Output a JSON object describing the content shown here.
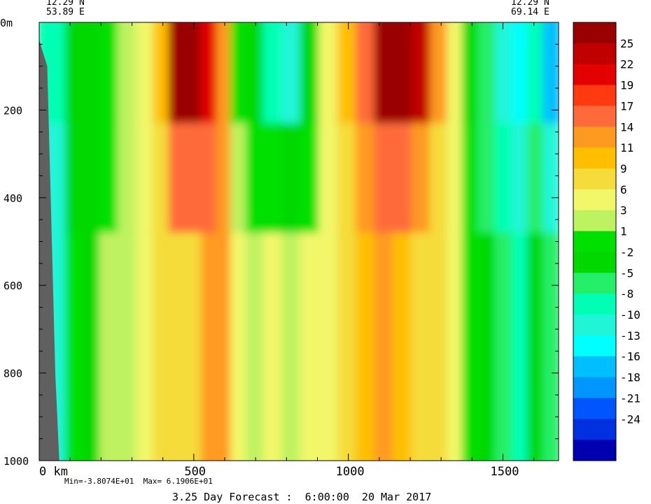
{
  "header": {
    "left_lat": "12.29 N",
    "left_lon": "53.89 E",
    "right_lat": "12.29 N",
    "right_lon": "69.14 E"
  },
  "footer": {
    "minmax": "Min=-3.8074E+01  Max= 6.1906E+01",
    "forecast": "3.25 Day Forecast :  6:00:00  20 Mar 2017"
  },
  "chart_data": {
    "type": "heatmap",
    "title": "",
    "xlabel": "",
    "ylabel": "",
    "x_tick_labels": [
      "0 km",
      "500",
      "1000",
      "1500"
    ],
    "x_ticks": [
      0,
      500,
      1000,
      1500
    ],
    "xlim": [
      0,
      1680
    ],
    "y_tick_labels": [
      "0m",
      "200",
      "400",
      "600",
      "800",
      "1000"
    ],
    "y_ticks": [
      0,
      200,
      400,
      600,
      800,
      1000
    ],
    "ylim": [
      0,
      1000
    ],
    "y_inverted": true,
    "colorbar": {
      "labels": [
        "25",
        "22",
        "19",
        "17",
        "14",
        "11",
        "9",
        "6",
        "3",
        "1",
        "-2",
        "-5",
        "-8",
        "-10",
        "-13",
        "-16",
        "-18",
        "-21",
        "-24"
      ],
      "colors": [
        "#9b0000",
        "#c00000",
        "#e30000",
        "#ff3a10",
        "#ff6a3a",
        "#ff9a20",
        "#ffbf00",
        "#f5dc3a",
        "#f2f76a",
        "#bff260",
        "#00e000",
        "#00d800",
        "#25ee68",
        "#00ffb4",
        "#20f5d8",
        "#00ffff",
        "#00bfff",
        "#0095ff",
        "#0055ff",
        "#0030e0",
        "#0000b0"
      ]
    },
    "columns": [
      {
        "x": 70,
        "value": -10,
        "deep": -13
      },
      {
        "x": 110,
        "value": -4,
        "deep": -2
      },
      {
        "x": 170,
        "value": -5,
        "deep": -3
      },
      {
        "x": 230,
        "value": -2,
        "deep": 1
      },
      {
        "x": 290,
        "value": 1,
        "deep": 2
      },
      {
        "x": 350,
        "value": 3,
        "deep": 5
      },
      {
        "x": 400,
        "value": 9,
        "deep": 6
      },
      {
        "x": 450,
        "value": 25,
        "deep": 7
      },
      {
        "x": 500,
        "value": 25,
        "deep": 8
      },
      {
        "x": 560,
        "value": 20,
        "deep": 13
      },
      {
        "x": 600,
        "value": 12,
        "deep": 12
      },
      {
        "x": 650,
        "value": 0,
        "deep": 4
      },
      {
        "x": 700,
        "value": -4,
        "deep": 1
      },
      {
        "x": 760,
        "value": -9,
        "deep": 3
      },
      {
        "x": 820,
        "value": -12,
        "deep": 2
      },
      {
        "x": 880,
        "value": -4,
        "deep": 4
      },
      {
        "x": 940,
        "value": 4,
        "deep": 5
      },
      {
        "x": 1000,
        "value": 9,
        "deep": 6
      },
      {
        "x": 1060,
        "value": 14,
        "deep": 9
      },
      {
        "x": 1120,
        "value": 25,
        "deep": 11
      },
      {
        "x": 1180,
        "value": 25,
        "deep": 9
      },
      {
        "x": 1240,
        "value": 22,
        "deep": 7
      },
      {
        "x": 1300,
        "value": 12,
        "deep": 6
      },
      {
        "x": 1350,
        "value": 3,
        "deep": 4
      },
      {
        "x": 1400,
        "value": -3,
        "deep": -1
      },
      {
        "x": 1450,
        "value": -8,
        "deep": -4
      },
      {
        "x": 1510,
        "value": -13,
        "deep": -8
      },
      {
        "x": 1560,
        "value": -15,
        "deep": -10
      },
      {
        "x": 1610,
        "value": -10,
        "deep": -5
      },
      {
        "x": 1660,
        "value": -18,
        "deep": -6
      }
    ]
  }
}
